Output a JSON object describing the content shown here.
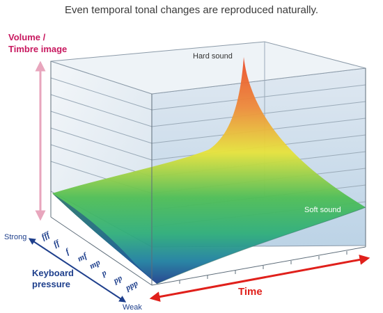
{
  "caption": "Even temporal tonal changes are reproduced naturally.",
  "y_axis": {
    "line1": "Volume /",
    "line2": "Timbre image"
  },
  "x_axis": {
    "label": "Time"
  },
  "z_axis": {
    "title_line1": "Keyboard",
    "title_line2": "pressure",
    "strong": "Strong",
    "weak": "Weak",
    "dynamics": [
      "fff",
      "ff",
      "f",
      "mf",
      "mp",
      "p",
      "pp",
      "ppp"
    ]
  },
  "annotations": {
    "hard": "Hard sound",
    "soft": "Soft sound"
  },
  "colors": {
    "y_axis_label": "#c8185f",
    "y_axis_arrow": "#e8a6bd",
    "time_label": "#e0201b",
    "time_arrow": "#e0201b",
    "z_axis_text": "#1e3f8c",
    "surface_high": "#ea4c2b",
    "surface_mid": "#e7e33b",
    "surface_low": "#2fae4e",
    "surface_base": "#1e3f8c"
  }
}
